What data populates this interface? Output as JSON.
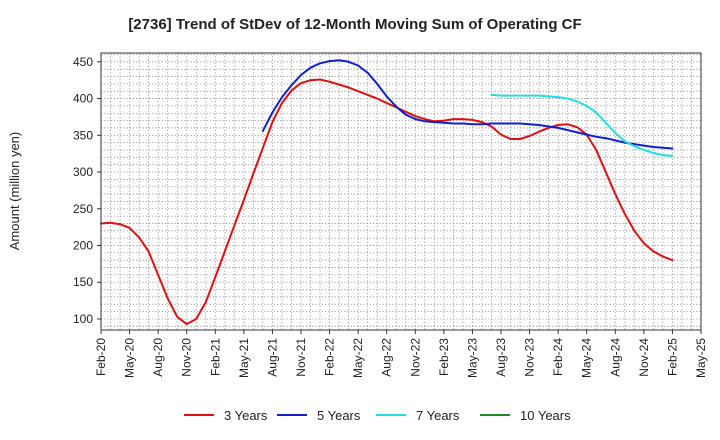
{
  "chart_data": {
    "type": "line",
    "title": "[2736]  Trend of StDev of 12-Month Moving Sum of Operating CF",
    "xlabel": "",
    "ylabel": "Amount (million yen)",
    "ylim": [
      85,
      462
    ],
    "yticks": [
      100,
      150,
      200,
      250,
      300,
      350,
      400,
      450
    ],
    "xlim": [
      0,
      63
    ],
    "xtick_labels": [
      "Feb-20",
      "May-20",
      "Aug-20",
      "Nov-20",
      "Feb-21",
      "May-21",
      "Aug-21",
      "Nov-21",
      "Feb-22",
      "May-22",
      "Aug-22",
      "Nov-22",
      "Feb-23",
      "May-23",
      "Aug-23",
      "Nov-23",
      "Feb-24",
      "May-24",
      "Aug-24",
      "Nov-24",
      "Feb-25",
      "May-25"
    ],
    "grid": true,
    "legend_position": "bottom",
    "series": [
      {
        "name": "3 Years",
        "color": "#dd1111",
        "x": [
          0,
          1,
          2,
          3,
          4,
          5,
          6,
          7,
          8,
          9,
          10,
          11,
          12,
          13,
          14,
          15,
          16,
          17,
          18,
          19,
          20,
          21,
          22,
          23,
          24,
          25,
          26,
          27,
          28,
          29,
          30,
          31,
          32,
          33,
          34,
          35,
          36,
          37,
          38,
          39,
          40,
          41,
          42,
          43,
          44,
          45,
          46,
          47,
          48,
          49,
          50,
          51,
          52,
          53,
          54,
          55,
          56,
          57,
          58,
          59,
          60
        ],
        "values": [
          230,
          231,
          229,
          224,
          211,
          192,
          160,
          128,
          103,
          93,
          100,
          123,
          157,
          192,
          227,
          262,
          298,
          333,
          368,
          394,
          411,
          421,
          425,
          426,
          423,
          419,
          415,
          410,
          405,
          400,
          394,
          388,
          382,
          376,
          372,
          369,
          370,
          372,
          372,
          371,
          368,
          362,
          351,
          345,
          345,
          349,
          355,
          360,
          364,
          365,
          361,
          351,
          330,
          300,
          270,
          243,
          220,
          203,
          192,
          185,
          180
        ]
      },
      {
        "name": "5 Years",
        "color": "#1122cc",
        "x": [
          17,
          18,
          19,
          20,
          21,
          22,
          23,
          24,
          25,
          26,
          27,
          28,
          29,
          30,
          31,
          32,
          33,
          34,
          35,
          36,
          37,
          38,
          39,
          40,
          41,
          42,
          43,
          44,
          45,
          46,
          47,
          48,
          49,
          50,
          51,
          52,
          53,
          54,
          55,
          56,
          57,
          58,
          59,
          60
        ],
        "values": [
          356,
          381,
          402,
          418,
          432,
          442,
          448,
          451,
          452,
          450,
          445,
          435,
          420,
          403,
          389,
          378,
          372,
          369,
          368,
          367,
          366,
          366,
          365,
          365,
          366,
          366,
          366,
          366,
          365,
          364,
          362,
          360,
          357,
          354,
          351,
          348,
          346,
          343,
          340,
          338,
          336,
          334,
          333,
          332
        ]
      },
      {
        "name": "7 Years",
        "color": "#22dddd",
        "x": [
          41,
          42,
          43,
          44,
          45,
          46,
          47,
          48,
          49,
          50,
          51,
          52,
          53,
          54,
          55,
          56,
          57,
          58,
          59,
          60
        ],
        "values": [
          405,
          404,
          404,
          404,
          404,
          404,
          403,
          402,
          400,
          396,
          390,
          381,
          367,
          353,
          342,
          335,
          330,
          326,
          323,
          322
        ]
      },
      {
        "name": "10 Years",
        "color": "#228822",
        "x": [],
        "values": []
      }
    ]
  }
}
